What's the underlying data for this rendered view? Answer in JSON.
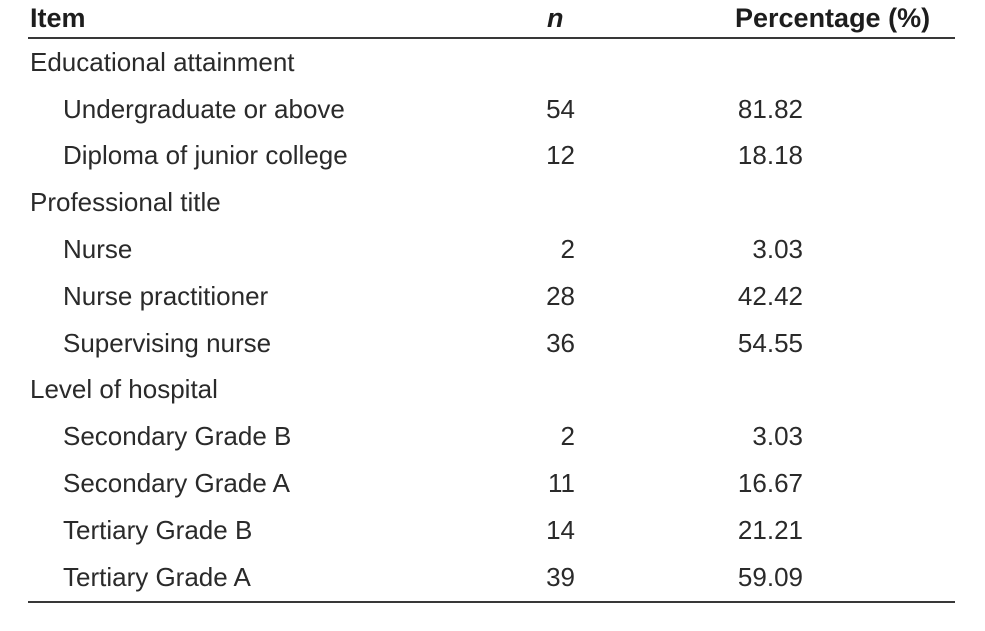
{
  "colors": {
    "background": "#ffffff",
    "text": "#2a2a2a",
    "rule": "#383838"
  },
  "table": {
    "headers": {
      "item": "Item",
      "n": "n",
      "percentage": "Percentage (%)"
    },
    "rows": [
      {
        "label": "Educational attainment",
        "n": "",
        "pct": ""
      },
      {
        "label": "Undergraduate or above",
        "n": "54",
        "pct": "81.82"
      },
      {
        "label": "Diploma of junior college",
        "n": "12",
        "pct": "18.18"
      },
      {
        "label": "Professional title",
        "n": "",
        "pct": ""
      },
      {
        "label": "Nurse",
        "n": "2",
        "pct": "3.03"
      },
      {
        "label": "Nurse practitioner",
        "n": "28",
        "pct": "42.42"
      },
      {
        "label": "Supervising nurse",
        "n": "36",
        "pct": "54.55"
      },
      {
        "label": "Level of hospital",
        "n": "",
        "pct": ""
      },
      {
        "label": "Secondary Grade B",
        "n": "2",
        "pct": "3.03"
      },
      {
        "label": "Secondary Grade A",
        "n": "11",
        "pct": "16.67"
      },
      {
        "label": "Tertiary Grade B",
        "n": "14",
        "pct": "21.21"
      },
      {
        "label": "Tertiary Grade A",
        "n": "39",
        "pct": "59.09"
      }
    ]
  },
  "chart_data": {
    "type": "table",
    "title": "",
    "columns": [
      "Item",
      "n",
      "Percentage (%)"
    ],
    "groups": [
      {
        "group": "Educational attainment",
        "items": [
          {
            "item": "Undergraduate or above",
            "n": 54,
            "percentage": 81.82
          },
          {
            "item": "Diploma of junior college",
            "n": 12,
            "percentage": 18.18
          }
        ]
      },
      {
        "group": "Professional title",
        "items": [
          {
            "item": "Nurse",
            "n": 2,
            "percentage": 3.03
          },
          {
            "item": "Nurse practitioner",
            "n": 28,
            "percentage": 42.42
          },
          {
            "item": "Supervising nurse",
            "n": 36,
            "percentage": 54.55
          }
        ]
      },
      {
        "group": "Level of hospital",
        "items": [
          {
            "item": "Secondary Grade B",
            "n": 2,
            "percentage": 3.03
          },
          {
            "item": "Secondary Grade A",
            "n": 11,
            "percentage": 16.67
          },
          {
            "item": "Tertiary Grade B",
            "n": 14,
            "percentage": 21.21
          },
          {
            "item": "Tertiary Grade A",
            "n": 39,
            "percentage": 59.09
          }
        ]
      }
    ]
  }
}
